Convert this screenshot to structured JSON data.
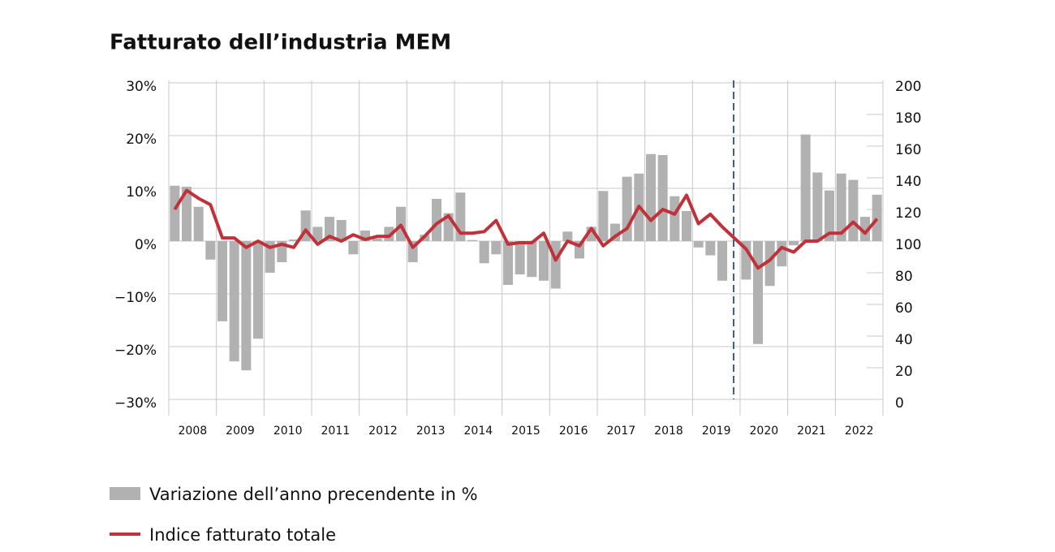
{
  "chart_data": {
    "type": "bar+line",
    "title": "Fatturato dell’industria MEM",
    "categories": [
      null,
      "2008",
      null,
      null,
      null,
      "2009",
      null,
      null,
      null,
      "2010",
      null,
      null,
      null,
      "2011",
      null,
      null,
      null,
      "2012",
      null,
      null,
      null,
      "2013",
      null,
      null,
      null,
      "2014",
      null,
      null,
      null,
      "2015",
      null,
      null,
      null,
      "2016",
      null,
      null,
      null,
      "2017",
      null,
      null,
      null,
      "2018",
      null,
      null,
      null,
      "2019",
      null,
      null,
      null,
      "2020",
      null,
      null,
      null,
      "2021",
      null,
      null,
      null,
      "2022",
      null,
      null
    ],
    "series": [
      {
        "name": "Variazione dell’anno precendente in %",
        "type": "bar",
        "color": "#b1b1b1",
        "values": [
          10.5,
          10.3,
          6.5,
          -3.5,
          -15.2,
          -22.8,
          -24.5,
          -18.5,
          -6,
          -4,
          0.3,
          5.8,
          2.7,
          4.6,
          4.0,
          -2.5,
          2.0,
          0.5,
          2.7,
          6.5,
          -4.0,
          1.2,
          8.0,
          5.3,
          9.2,
          0.2,
          -4.2,
          -2.5,
          -8.3,
          -6.3,
          -6.8,
          -7.5,
          -9.0,
          1.8,
          -3.3,
          2.7,
          9.5,
          3.3,
          12.2,
          12.8,
          16.5,
          16.3,
          8.5,
          5.7,
          -1.2,
          -2.7,
          -7.5,
          0,
          -7.3,
          -19.5,
          -8.5,
          -4.8,
          -0.8,
          20.2,
          13.0,
          9.6,
          12.8,
          11.6,
          4.6,
          8.8
        ]
      },
      {
        "name": "Indice fatturato totale",
        "type": "line",
        "axis": "y2",
        "color": "#c0313a",
        "values": [
          120,
          132,
          127,
          123,
          102,
          102,
          96,
          100,
          96,
          98,
          96,
          107,
          98,
          103,
          100,
          104,
          101,
          103,
          103,
          110,
          96,
          103,
          111,
          116,
          105,
          105,
          106,
          113,
          98,
          99,
          99,
          105,
          88,
          100,
          97,
          108,
          97,
          103,
          108,
          122,
          113,
          120,
          117,
          129,
          111,
          117,
          109,
          102,
          95,
          83,
          88,
          96,
          93,
          100,
          100,
          105,
          105,
          112,
          105,
          114
        ]
      }
    ],
    "ylim": [
      -30,
      30
    ],
    "yticks": [
      {
        "value": -30,
        "label": "−30%"
      },
      {
        "value": -20,
        "label": "−20%"
      },
      {
        "value": -10,
        "label": "−10%"
      },
      {
        "value": 0,
        "label": "0%"
      },
      {
        "value": 10,
        "label": "10%"
      },
      {
        "value": 20,
        "label": "20%"
      },
      {
        "value": 30,
        "label": "30%"
      }
    ],
    "y2lim": [
      0,
      200
    ],
    "y2ticks": [
      0,
      20,
      40,
      60,
      80,
      100,
      120,
      140,
      160,
      180,
      200
    ],
    "grid": true
  }
}
